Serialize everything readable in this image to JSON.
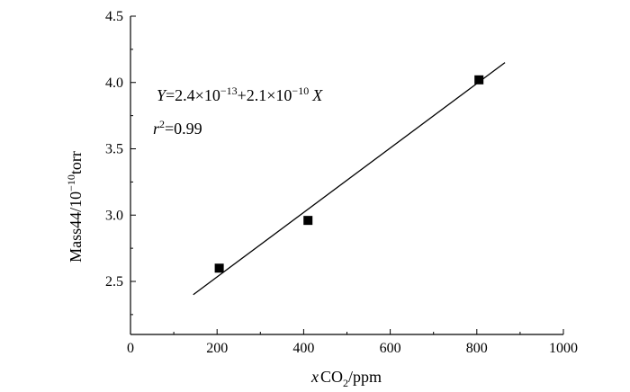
{
  "chart_data": {
    "type": "scatter",
    "xlim": [
      0,
      1000
    ],
    "ylim": [
      2.1,
      4.5
    ],
    "x_ticks": [
      0,
      200,
      400,
      600,
      800,
      1000
    ],
    "y_ticks": [
      2.5,
      3.0,
      3.5,
      4.0,
      4.5
    ],
    "x_tick_labels": [
      "0",
      "200",
      "400",
      "600",
      "800",
      "1000"
    ],
    "y_tick_labels": [
      "2.5",
      "3.0",
      "3.5",
      "4.0",
      "4.5"
    ],
    "xlabel": {
      "var": "x",
      "base": "CO",
      "sub": "2",
      "rest": "/ppm"
    },
    "ylabel": {
      "base": "Mass44/10",
      "sup": "−10",
      "rest": "torr"
    },
    "points": [
      {
        "x": 205,
        "y": 2.6
      },
      {
        "x": 410,
        "y": 2.96
      },
      {
        "x": 805,
        "y": 4.02
      }
    ],
    "fit_line": {
      "x": [
        145,
        865
      ],
      "y": [
        2.4,
        4.15
      ]
    },
    "annotation": {
      "eq_Y": "Y",
      "eq_mid1": "=2.4×10",
      "eq_exp1": "−13",
      "eq_mid2": "+2.1×10",
      "eq_exp2": "−10",
      "eq_X": "X",
      "r2_r": "r",
      "r2_sup": "2",
      "r2_val": "=0.99"
    },
    "grid": false,
    "legend": "none"
  }
}
